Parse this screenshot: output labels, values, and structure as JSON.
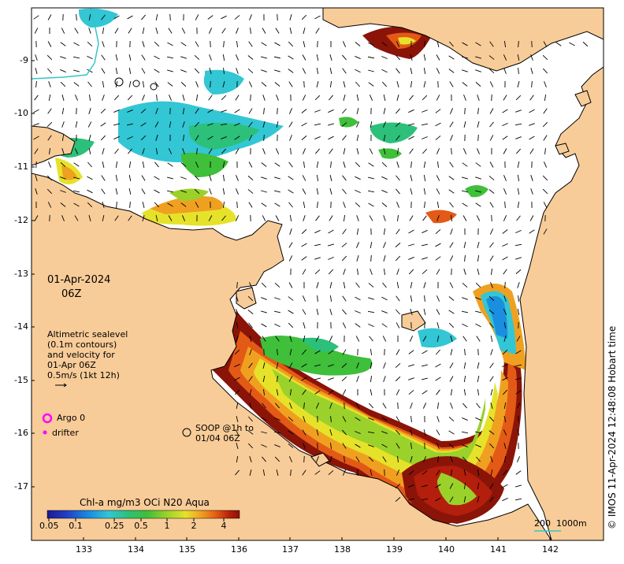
{
  "map": {
    "longitude_labels": [
      "133",
      "134",
      "135",
      "136",
      "137",
      "138",
      "139",
      "140",
      "141",
      "142"
    ],
    "latitude_labels": [
      "-9",
      "-10",
      "-11",
      "-12",
      "-13",
      "-14",
      "-15",
      "-16",
      "-17"
    ],
    "land_color": "#f8cc98",
    "ocean_color": "#ffffff"
  },
  "timestamp": {
    "date": "01-Apr-2024",
    "time": "06Z"
  },
  "altimetry_note": [
    "Altimetric sealevel",
    "(0.1m contours)",
    "and velocity for",
    "01-Apr 06Z",
    "0.5m/s (1kt 12h)"
  ],
  "legend": {
    "argo": "Argo 0",
    "drifter": "drifter",
    "soop": [
      "SOOP @1h to",
      "01/04 06Z"
    ],
    "argo_color": "#ff00ff",
    "drifter_color": "#ff00ff"
  },
  "colorbar": {
    "title": "Chl-a mg/m3 OCi N20 Aqua",
    "ticks": [
      "0.05",
      "0.1",
      "0.25",
      "0.5",
      "1",
      "2",
      "4"
    ],
    "colors": [
      "#1c1a8f",
      "#1f3fc7",
      "#1a8fe0",
      "#33c6d4",
      "#2cc07a",
      "#3fbf3a",
      "#9ad12b",
      "#e6e22a",
      "#f0a020",
      "#e35a16",
      "#b41e0c",
      "#8a1408"
    ]
  },
  "scale_bar": {
    "label_200": "200",
    "label_1000": "1000m"
  },
  "credit": "© IMOS 11-Apr-2024 12:48:08 Hobart time"
}
